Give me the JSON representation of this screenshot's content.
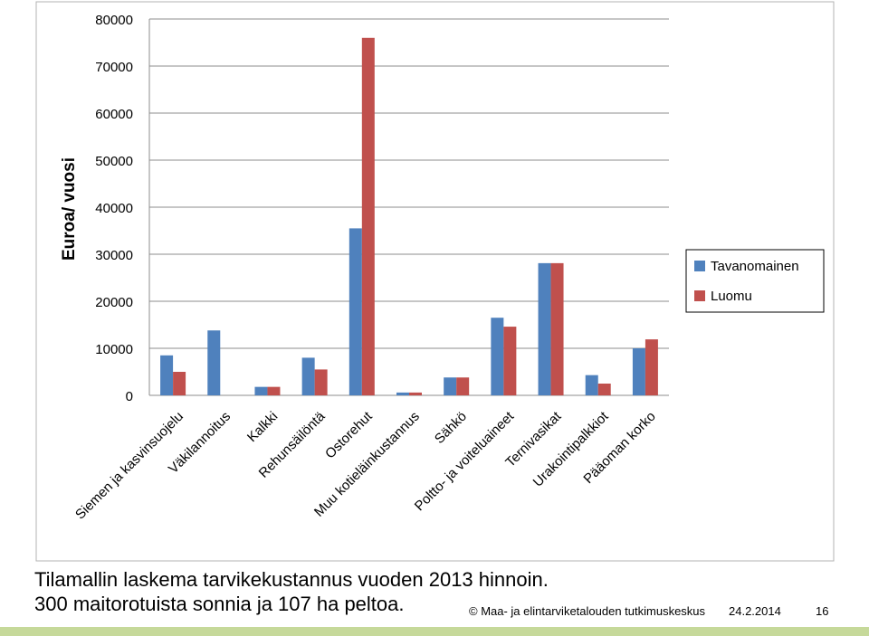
{
  "chart_data": {
    "type": "bar",
    "ylabel": "Euroa/ vuosi",
    "ylim": [
      0,
      80000
    ],
    "yticks": [
      "0",
      "10000",
      "20000",
      "30000",
      "40000",
      "50000",
      "60000",
      "70000",
      "80000"
    ],
    "grid": true,
    "legend_position": "right",
    "categories": [
      "Siemen ja kasvinsuojelu",
      "Väkilannoitus",
      "Kalkki",
      "Rehunsäilöntä",
      "Ostorehut",
      "Muu kotieläinkustannus",
      "Sähkö",
      "Poltto- ja voiteluaineet",
      "Ternivasikat",
      "Urakointipalkkiot",
      "Pääoman korko"
    ],
    "series": [
      {
        "name": "Tavanomainen",
        "color": "#4f81bd",
        "values": [
          8500,
          13800,
          1800,
          8000,
          35500,
          600,
          3800,
          16500,
          28100,
          4300,
          10000
        ]
      },
      {
        "name": "Luomu",
        "color": "#c0504d",
        "values": [
          5000,
          0,
          1800,
          5500,
          76000,
          600,
          3800,
          14600,
          28100,
          2500,
          11900
        ]
      }
    ]
  },
  "caption": {
    "line1": "Tilamallin laskema tarvikekustannus vuoden 2013 hinnoin.",
    "line2": "300 maitorotuista sonnia ja 107 ha peltoa."
  },
  "footer": {
    "org": "© Maa- ja elintarviketalouden tutkimuskeskus",
    "date": "24.2.2014",
    "page": "16",
    "accent_color": "#c6d99a"
  }
}
